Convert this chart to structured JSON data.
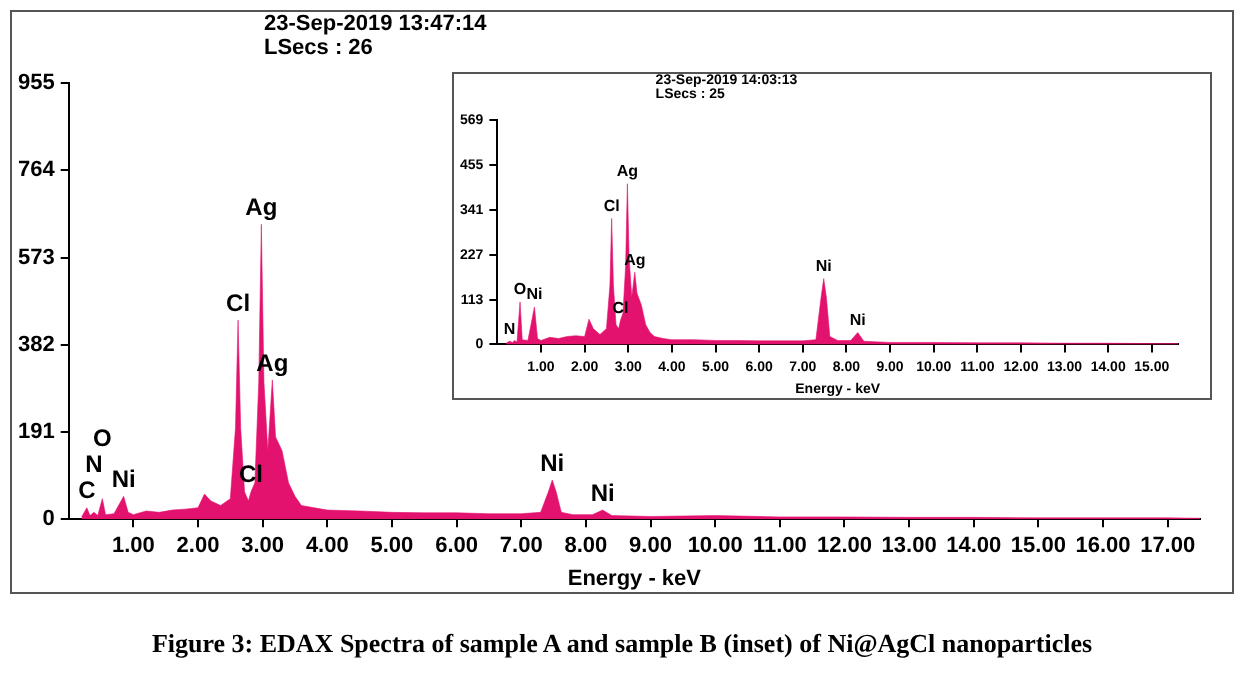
{
  "chart_data": [
    {
      "type": "area",
      "title": "Figure 3: EDAX Spectra of sample A and sample B (inset) of Ni@AgCl nanoparticles",
      "xlabel": "Energy - keV",
      "color": "#e3126e",
      "grid": false,
      "x": [
        0.2,
        0.28,
        0.33,
        0.39,
        0.45,
        0.52,
        0.57,
        0.7,
        0.85,
        0.92,
        1.0,
        1.2,
        1.4,
        1.6,
        1.8,
        2.0,
        2.1,
        2.2,
        2.35,
        2.5,
        2.58,
        2.62,
        2.66,
        2.72,
        2.78,
        2.82,
        2.88,
        2.94,
        2.98,
        3.02,
        3.08,
        3.15,
        3.2,
        3.3,
        3.4,
        3.5,
        3.6,
        3.8,
        4.0,
        4.5,
        5.0,
        5.5,
        6.0,
        6.5,
        7.0,
        7.3,
        7.42,
        7.48,
        7.54,
        7.62,
        7.8,
        8.1,
        8.26,
        8.4,
        9.0,
        10,
        11,
        12,
        13,
        14,
        15,
        16,
        17,
        17.5
      ],
      "values": [
        5,
        25,
        8,
        15,
        8,
        45,
        10,
        12,
        50,
        15,
        10,
        18,
        15,
        20,
        22,
        25,
        55,
        40,
        30,
        45,
        200,
        436,
        200,
        60,
        40,
        60,
        80,
        300,
        646,
        300,
        150,
        305,
        180,
        150,
        80,
        50,
        30,
        25,
        20,
        18,
        15,
        14,
        14,
        12,
        12,
        15,
        60,
        86,
        60,
        15,
        10,
        10,
        20,
        8,
        6,
        8,
        5,
        5,
        4,
        4,
        3,
        3,
        3,
        2
      ],
      "xlim": [
        0,
        17.5
      ],
      "xticks": [
        {
          "value": 1,
          "label": "1.00"
        },
        {
          "value": 2,
          "label": "2.00"
        },
        {
          "value": 3,
          "label": "3.00"
        },
        {
          "value": 4,
          "label": "4.00"
        },
        {
          "value": 5,
          "label": "5.00"
        },
        {
          "value": 6,
          "label": "6.00"
        },
        {
          "value": 7,
          "label": "7.00"
        },
        {
          "value": 8,
          "label": "8.00"
        },
        {
          "value": 9,
          "label": "9.00"
        },
        {
          "value": 10,
          "label": "10.00"
        },
        {
          "value": 11,
          "label": "11.00"
        },
        {
          "value": 12,
          "label": "12.00"
        },
        {
          "value": 13,
          "label": "13.00"
        },
        {
          "value": 14,
          "label": "14.00"
        },
        {
          "value": 15,
          "label": "15.00"
        },
        {
          "value": 16,
          "label": "16.00"
        },
        {
          "value": 17,
          "label": "17.00"
        }
      ],
      "ylim": [
        0,
        955
      ],
      "yticks": [
        0,
        191,
        382,
        573,
        764,
        955
      ],
      "annotations": [
        "23-Sep-2019 13:47:14",
        "LSecs : 26",
        {
          "text": "C",
          "x": 0.28,
          "y": 25
        },
        {
          "text": "N",
          "x": 0.39,
          "y": 15
        },
        {
          "text": "O",
          "x": 0.52,
          "y": 45
        },
        {
          "text": "Ni",
          "x": 0.85,
          "y": 50
        },
        {
          "text": "Cl",
          "x": 2.62,
          "y": 436
        },
        {
          "text": "Cl",
          "x": 2.82,
          "y": 60
        },
        {
          "text": "Ag",
          "x": 2.98,
          "y": 646
        },
        {
          "text": "Ag",
          "x": 3.15,
          "y": 305
        },
        {
          "text": "Ni",
          "x": 7.48,
          "y": 86
        },
        {
          "text": "Ni",
          "x": 8.26,
          "y": 20
        }
      ]
    },
    {
      "type": "area",
      "xlabel": "Energy - keV",
      "color": "#e3126e",
      "grid": false,
      "x": [
        0.2,
        0.28,
        0.35,
        0.39,
        0.45,
        0.52,
        0.57,
        0.7,
        0.85,
        0.92,
        1.0,
        1.2,
        1.4,
        1.6,
        1.8,
        2.0,
        2.1,
        2.2,
        2.35,
        2.5,
        2.58,
        2.62,
        2.66,
        2.72,
        2.78,
        2.82,
        2.88,
        2.94,
        2.98,
        3.02,
        3.08,
        3.15,
        3.2,
        3.3,
        3.4,
        3.5,
        3.6,
        3.8,
        4.0,
        4.5,
        5.0,
        5.5,
        6.0,
        6.5,
        7.0,
        7.3,
        7.42,
        7.48,
        7.54,
        7.62,
        7.8,
        8.1,
        8.26,
        8.4,
        9.0,
        10,
        11,
        12,
        13,
        14,
        15,
        15.6
      ],
      "values": [
        3,
        8,
        5,
        10,
        6,
        108,
        12,
        10,
        95,
        15,
        10,
        18,
        15,
        20,
        22,
        20,
        64,
        40,
        25,
        40,
        150,
        320,
        150,
        50,
        40,
        60,
        80,
        200,
        408,
        220,
        120,
        183,
        130,
        100,
        50,
        30,
        20,
        15,
        12,
        12,
        10,
        10,
        9,
        9,
        9,
        12,
        120,
        167,
        120,
        20,
        10,
        10,
        30,
        8,
        5,
        5,
        4,
        4,
        3,
        3,
        2,
        2
      ],
      "xlim": [
        0,
        15.6
      ],
      "xticks": [
        {
          "value": 1,
          "label": "1.00"
        },
        {
          "value": 2,
          "label": "2.00"
        },
        {
          "value": 3,
          "label": "3.00"
        },
        {
          "value": 4,
          "label": "4.00"
        },
        {
          "value": 5,
          "label": "5.00"
        },
        {
          "value": 6,
          "label": "6.00"
        },
        {
          "value": 7,
          "label": "7.00"
        },
        {
          "value": 8,
          "label": "8.00"
        },
        {
          "value": 9,
          "label": "9.00"
        },
        {
          "value": 10,
          "label": "10.00"
        },
        {
          "value": 11,
          "label": "11.00"
        },
        {
          "value": 12,
          "label": "12.00"
        },
        {
          "value": 13,
          "label": "13.00"
        },
        {
          "value": 14,
          "label": "14.00"
        },
        {
          "value": 15,
          "label": "15.00"
        }
      ],
      "ylim": [
        0,
        569
      ],
      "yticks": [
        0,
        113,
        227,
        341,
        455,
        569
      ],
      "annotations": [
        "23-Sep-2019 14:03:13",
        "LSecs : 25",
        {
          "text": "N",
          "x": 0.28,
          "y": 8
        },
        {
          "text": "O",
          "x": 0.52,
          "y": 108
        },
        {
          "text": "Ni",
          "x": 0.85,
          "y": 95
        },
        {
          "text": "Cl",
          "x": 2.62,
          "y": 320
        },
        {
          "text": "Cl",
          "x": 2.82,
          "y": 60
        },
        {
          "text": "Ag",
          "x": 2.98,
          "y": 408
        },
        {
          "text": "Ag",
          "x": 3.15,
          "y": 183
        },
        {
          "text": "Ni",
          "x": 7.48,
          "y": 167
        },
        {
          "text": "Ni",
          "x": 8.26,
          "y": 30
        }
      ]
    }
  ]
}
